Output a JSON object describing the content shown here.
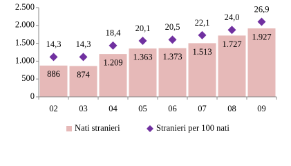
{
  "chart_data": {
    "type": "bar-scatter",
    "categories": [
      "02",
      "03",
      "04",
      "05",
      "06",
      "07",
      "08",
      "09"
    ],
    "series": [
      {
        "name": "Nati stranieri",
        "color": "#e6b9b8",
        "values": [
          886,
          874,
          1209,
          1363,
          1373,
          1513,
          1727,
          1927
        ],
        "value_labels": [
          "886",
          "874",
          "1.209",
          "1.363",
          "1.373",
          "1.513",
          "1.727",
          "1.927"
        ]
      },
      {
        "name": "Stranieri per 100 nati",
        "color": "#7030a0",
        "axis": "y2",
        "values": [
          14.3,
          14.3,
          18.4,
          20.1,
          20.5,
          22.1,
          24.0,
          26.9
        ],
        "value_labels": [
          "14,3",
          "14,3",
          "18,4",
          "20,1",
          "20,5",
          "22,1",
          "24,0",
          "26,9"
        ]
      }
    ],
    "ylim": [
      0,
      2500
    ],
    "yticks": [
      0,
      500,
      {
        "value": 1000,
        "label": "1.000"
      },
      {
        "value": 1500,
        "label": "1.500"
      },
      {
        "value": 2000,
        "label": "2.000"
      },
      {
        "value": 2500,
        "label": "2.500"
      }
    ],
    "y2lim": [
      0,
      32
    ],
    "legend": "bottom"
  }
}
